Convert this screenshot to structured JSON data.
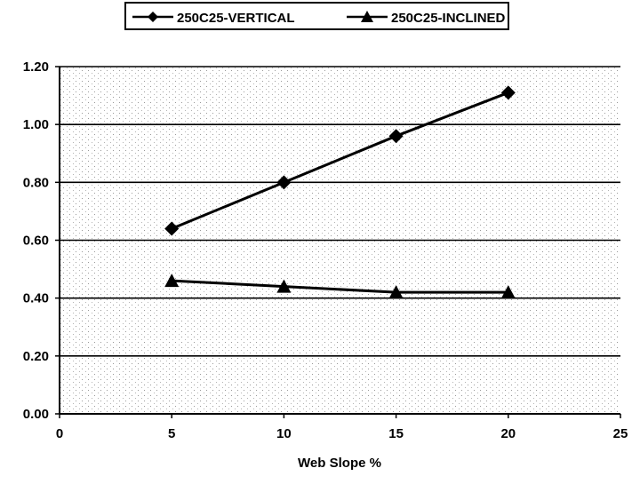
{
  "chart_data": {
    "type": "line",
    "title": "",
    "xlabel": "Web Slope %",
    "ylabel": "",
    "xlim": [
      0,
      25
    ],
    "ylim": [
      0,
      1.2
    ],
    "x_ticks": [
      "0",
      "5",
      "10",
      "15",
      "20",
      "25"
    ],
    "y_ticks": [
      "0.00",
      "0.20",
      "0.40",
      "0.60",
      "0.80",
      "1.00",
      "1.20"
    ],
    "grid": "horizontal",
    "legend_position": "top-center",
    "series": [
      {
        "name": "250C25-VERTICAL",
        "marker": "diamond",
        "color": "#000000",
        "x": [
          5,
          10,
          15,
          20
        ],
        "y": [
          0.64,
          0.8,
          0.96,
          1.11
        ]
      },
      {
        "name": "250C25-INCLINED",
        "marker": "triangle",
        "color": "#000000",
        "x": [
          5,
          10,
          15,
          20
        ],
        "y": [
          0.46,
          0.44,
          0.42,
          0.42
        ]
      }
    ]
  }
}
